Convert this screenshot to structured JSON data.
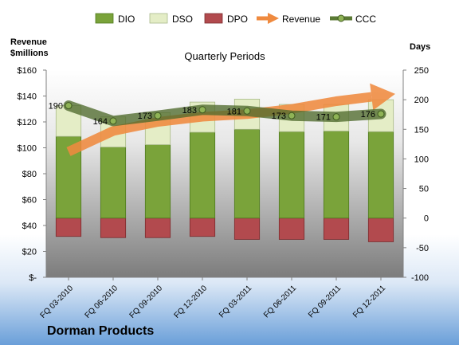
{
  "chart_data": {
    "type": "bar",
    "company": "Dorman Products",
    "title": "Quarterly Periods",
    "left_axis_label": [
      "Revenue",
      "$millions"
    ],
    "right_axis_label": "Days",
    "categories": [
      "FQ 03-2010",
      "FQ 06-2010",
      "FQ 09-2010",
      "FQ 12-2010",
      "FQ 03-2011",
      "FQ 06-2011",
      "FQ 09-2011",
      "FQ 12-2011"
    ],
    "left_axis": {
      "min": 0,
      "max": 160,
      "step": 20,
      "tick_labels": [
        "$-",
        "$20",
        "$40",
        "$60",
        "$80",
        "$100",
        "$120",
        "$140",
        "$160"
      ]
    },
    "right_axis": {
      "min": -100,
      "max": 250,
      "step": 50
    },
    "series": [
      {
        "name": "DIO",
        "type": "stacked-bar",
        "axis": "right",
        "color": "#7aa33a",
        "values": [
          138,
          120,
          124,
          145,
          150,
          146,
          147,
          146
        ]
      },
      {
        "name": "DSO",
        "type": "stacked-bar",
        "axis": "right",
        "color": "#e4edc6",
        "values": [
          52,
          51,
          54,
          51,
          51,
          46,
          45,
          54
        ]
      },
      {
        "name": "DPO",
        "type": "stacked-bar",
        "axis": "right",
        "color": "#b24a4e",
        "values": [
          -31,
          -33,
          -33,
          -31,
          -36,
          -36,
          -36,
          -40
        ]
      },
      {
        "name": "Revenue",
        "type": "arrow-line",
        "axis": "left",
        "color": "#ef8a3f",
        "values": [
          97,
          113,
          120,
          124,
          126,
          130,
          136,
          141
        ]
      },
      {
        "name": "CCC",
        "type": "line",
        "axis": "right",
        "color": "#5b7a35",
        "values": [
          190,
          164,
          173,
          183,
          181,
          173,
          171,
          176
        ],
        "data_labels": [
          "190",
          "164",
          "173",
          "183",
          "181",
          "173",
          "171",
          "176"
        ]
      }
    ],
    "legend_position": "top",
    "grid": false
  }
}
